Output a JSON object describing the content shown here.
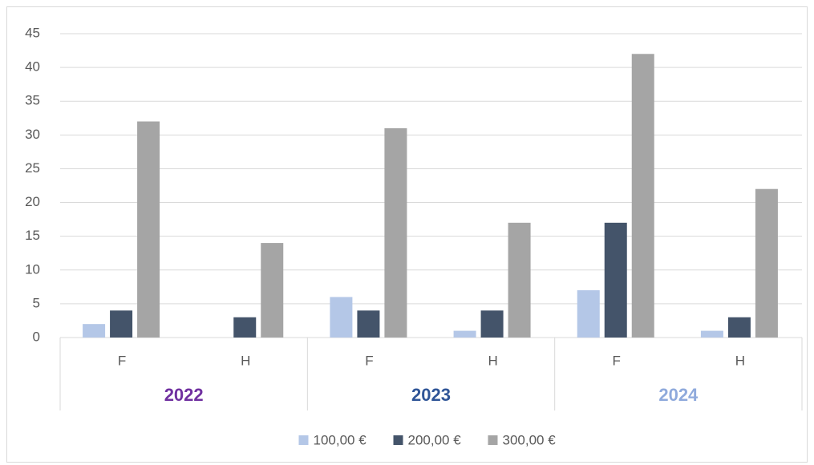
{
  "chart_data": {
    "type": "bar",
    "categories": [
      "F",
      "H",
      "F",
      "H",
      "F",
      "H"
    ],
    "groups": [
      "2022",
      "2023",
      "2024"
    ],
    "group_colors": [
      "#7030a0",
      "#2f5597",
      "#8faadc"
    ],
    "series": [
      {
        "name": "100,00 €",
        "color": "#b4c7e7",
        "values": [
          2,
          0,
          6,
          1,
          7,
          1
        ]
      },
      {
        "name": "200,00 €",
        "color": "#44546a",
        "values": [
          4,
          3,
          4,
          4,
          17,
          3
        ]
      },
      {
        "name": "300,00 €",
        "color": "#a5a5a5",
        "values": [
          32,
          14,
          31,
          17,
          42,
          22
        ]
      }
    ],
    "ylim": [
      0,
      45
    ],
    "yticks": [
      0,
      5,
      10,
      15,
      20,
      25,
      30,
      35,
      40,
      45
    ],
    "grid": true,
    "legend": "bottom"
  }
}
